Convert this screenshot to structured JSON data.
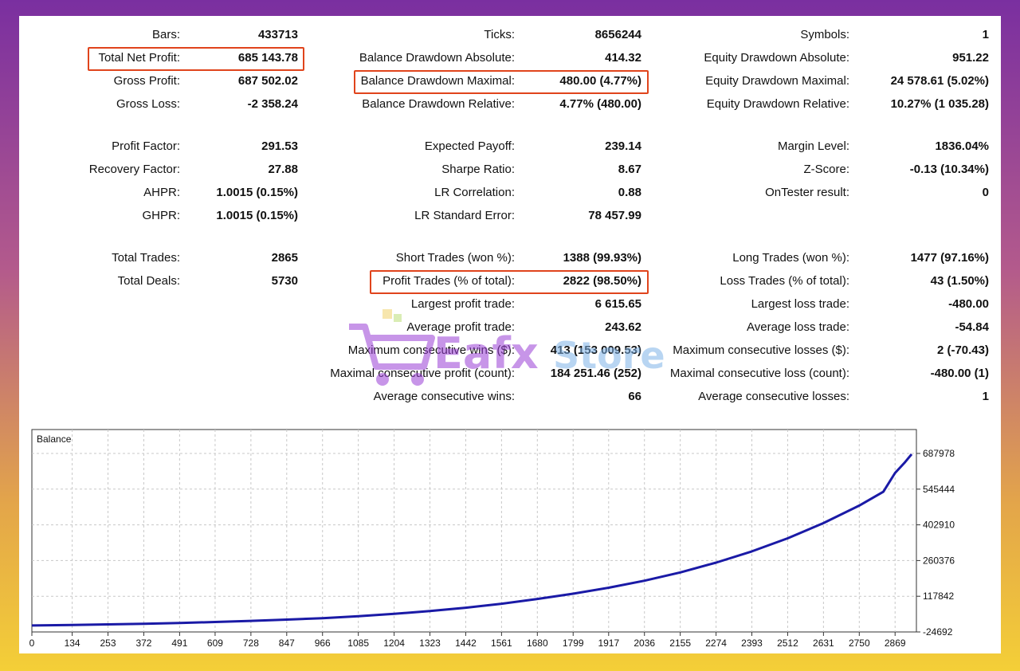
{
  "stats": {
    "col1": [
      {
        "label": "Bars:",
        "value": "433713"
      },
      {
        "label": "Total Net Profit:",
        "value": "685 143.78",
        "highlight": true
      },
      {
        "label": "Gross Profit:",
        "value": "687 502.02"
      },
      {
        "label": "Gross Loss:",
        "value": "-2 358.24"
      },
      {
        "label": "Profit Factor:",
        "value": "291.53"
      },
      {
        "label": "Recovery Factor:",
        "value": "27.88"
      },
      {
        "label": "AHPR:",
        "value": "1.0015 (0.15%)"
      },
      {
        "label": "GHPR:",
        "value": "1.0015 (0.15%)"
      },
      {
        "label": "Total Trades:",
        "value": "2865"
      },
      {
        "label": "Total Deals:",
        "value": "5730"
      }
    ],
    "col2": [
      {
        "label": "Ticks:",
        "value": "8656244"
      },
      {
        "label": "Balance Drawdown Absolute:",
        "value": "414.32"
      },
      {
        "label": "Balance Drawdown Maximal:",
        "value": "480.00 (4.77%)",
        "highlight": true
      },
      {
        "label": "Balance Drawdown Relative:",
        "value": "4.77% (480.00)"
      },
      {
        "label": "Expected Payoff:",
        "value": "239.14"
      },
      {
        "label": "Sharpe Ratio:",
        "value": "8.67"
      },
      {
        "label": "LR Correlation:",
        "value": "0.88"
      },
      {
        "label": "LR Standard Error:",
        "value": "78 457.99"
      },
      {
        "label": "Short Trades (won %):",
        "value": "1388 (99.93%)"
      },
      {
        "label": "Profit Trades (% of total):",
        "value": "2822 (98.50%)",
        "highlight": true
      },
      {
        "label": "Largest profit trade:",
        "value": "6 615.65"
      },
      {
        "label": "Average profit trade:",
        "value": "243.62"
      },
      {
        "label": "Maximum consecutive wins ($):",
        "value": "413 (153 009.53)"
      },
      {
        "label": "Maximal consecutive profit (count):",
        "value": "184 251.46 (252)"
      },
      {
        "label": "Average consecutive wins:",
        "value": "66"
      }
    ],
    "col3": [
      {
        "label": "Symbols:",
        "value": "1"
      },
      {
        "label": "Equity Drawdown Absolute:",
        "value": "951.22"
      },
      {
        "label": "Equity Drawdown Maximal:",
        "value": "24 578.61 (5.02%)"
      },
      {
        "label": "Equity Drawdown Relative:",
        "value": "10.27% (1 035.28)"
      },
      {
        "label": "Margin Level:",
        "value": "1836.04%"
      },
      {
        "label": "Z-Score:",
        "value": "-0.13 (10.34%)"
      },
      {
        "label": "OnTester result:",
        "value": "0"
      },
      {
        "label": "Long Trades (won %):",
        "value": "1477 (97.16%)"
      },
      {
        "label": "Loss Trades (% of total):",
        "value": "43 (1.50%)"
      },
      {
        "label": "Largest loss trade:",
        "value": "-480.00"
      },
      {
        "label": "Average loss trade:",
        "value": "-54.84"
      },
      {
        "label": "Maximum consecutive losses ($):",
        "value": "2 (-70.43)"
      },
      {
        "label": "Maximal consecutive loss (count):",
        "value": "-480.00 (1)"
      },
      {
        "label": "Average consecutive losses:",
        "value": "1"
      }
    ]
  },
  "watermark": {
    "part1": "Eafx",
    "part2": "Store"
  },
  "chart_data": {
    "type": "line",
    "title": "Balance",
    "xlabel": "",
    "ylabel": "",
    "x_ticks": [
      "0",
      "134",
      "253",
      "372",
      "491",
      "609",
      "728",
      "847",
      "966",
      "1085",
      "1204",
      "1323",
      "1442",
      "1561",
      "1680",
      "1799",
      "1917",
      "2036",
      "2155",
      "2274",
      "2393",
      "2512",
      "2631",
      "2750",
      "2869"
    ],
    "y_ticks": [
      "687978",
      "545444",
      "402910",
      "260376",
      "117842",
      "-24692"
    ],
    "xlim": [
      0,
      2924
    ],
    "ylim": [
      -24692,
      687978
    ],
    "grid": true,
    "series": [
      {
        "color": "#1a1aa6",
        "x": [
          0,
          134,
          253,
          372,
          491,
          609,
          728,
          847,
          966,
          1085,
          1204,
          1323,
          1442,
          1561,
          1680,
          1799,
          1917,
          2036,
          2155,
          2274,
          2393,
          2512,
          2631,
          2750,
          2830,
          2869,
          2900,
          2924
        ],
        "y": [
          1000,
          3000,
          5500,
          8000,
          11000,
          15000,
          19500,
          24500,
          30500,
          38000,
          47500,
          59000,
          72000,
          88000,
          107000,
          128000,
          152000,
          180000,
          213000,
          252000,
          297000,
          349000,
          410000,
          480000,
          535000,
          610000,
          650000,
          685000
        ]
      }
    ]
  }
}
